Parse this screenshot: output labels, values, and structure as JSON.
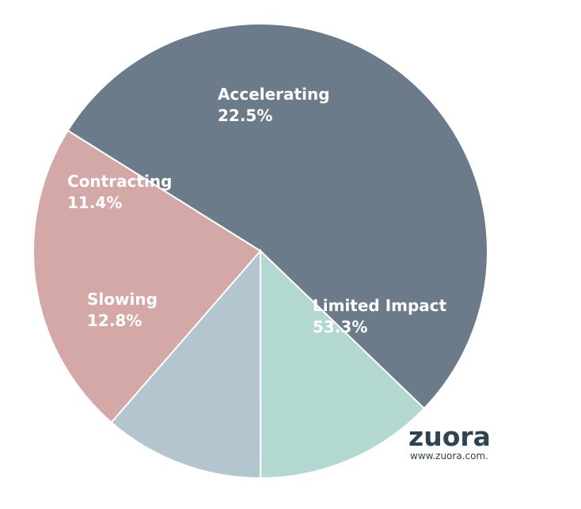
{
  "chart_data": {
    "type": "pie",
    "title": "",
    "slices": [
      {
        "label": "Limited Impact",
        "value": 53.3,
        "value_label": "53.3%",
        "color": "#6c7b8a"
      },
      {
        "label": "Slowing",
        "value": 12.8,
        "value_label": "12.8%",
        "color": "#b3d7d1"
      },
      {
        "label": "Contracting",
        "value": 11.4,
        "value_label": "11.4%",
        "color": "#b3c5ce"
      },
      {
        "label": "Accelerating",
        "value": 22.5,
        "value_label": "22.5%",
        "color": "#d4a8a7"
      }
    ]
  },
  "branding": {
    "logo_text": "zuora",
    "url": "www.zuora.com.",
    "color": "#2f4453"
  }
}
